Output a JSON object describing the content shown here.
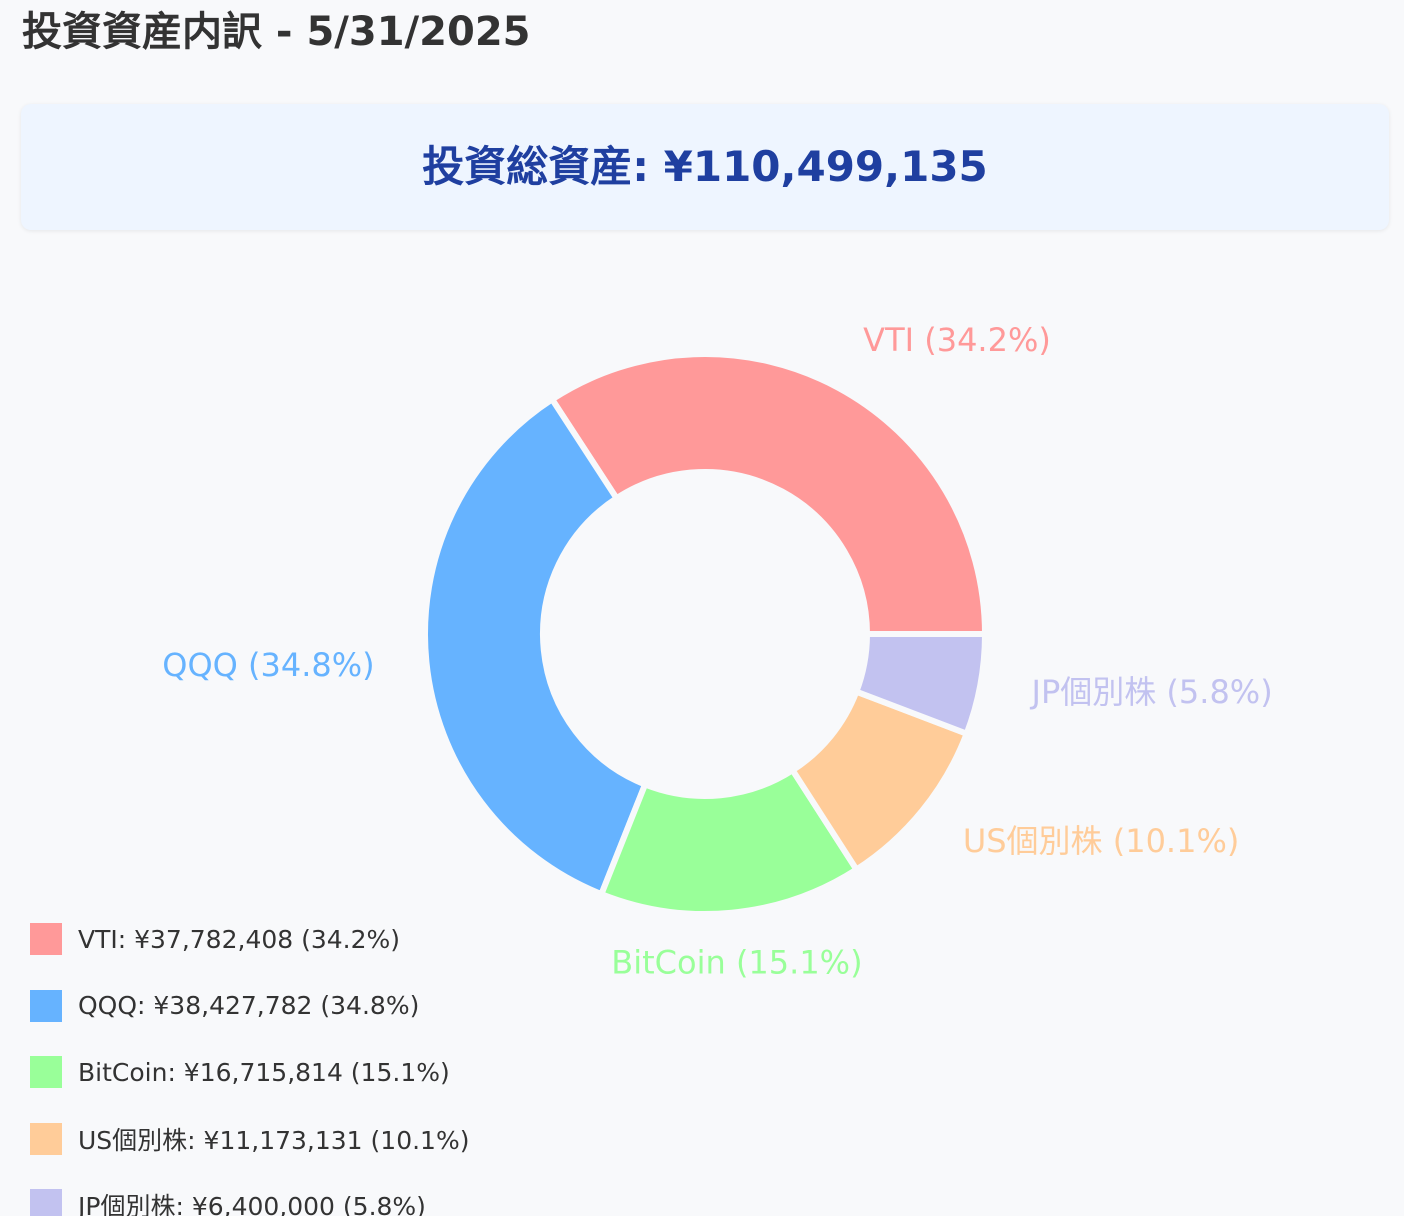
{
  "title": "投資資産内訳 - 5/31/2025",
  "total": {
    "text": "投資総資産: ¥110,499,135"
  },
  "chart_data": {
    "type": "pie",
    "donut": true,
    "categories": [
      "VTI",
      "QQQ",
      "BitCoin",
      "US個別株",
      "JP個別株"
    ],
    "values": [
      37782408,
      38427782,
      16715814,
      11173131,
      6400000
    ],
    "percentages": [
      34.2,
      34.8,
      15.1,
      10.1,
      5.8
    ],
    "colors": [
      "#ff9999",
      "#66b3ff",
      "#99ff99",
      "#ffcc99",
      "#c2c2f0"
    ],
    "slice_labels": [
      "VTI (34.2%)",
      "QQQ (34.8%)",
      "BitCoin (15.1%)",
      "US個別株 (10.1%)",
      "JP個別株 (5.8%)"
    ],
    "legend_position": "bottom-left"
  },
  "legend": [
    {
      "text": "VTI: ¥37,782,408 (34.2%)",
      "color": "#ff9999"
    },
    {
      "text": "QQQ: ¥38,427,782 (34.8%)",
      "color": "#66b3ff"
    },
    {
      "text": "BitCoin: ¥16,715,814 (15.1%)",
      "color": "#99ff99"
    },
    {
      "text": "US個別株: ¥11,173,131 (10.1%)",
      "color": "#ffcc99"
    },
    {
      "text": "JP個別株: ¥6,400,000 (5.8%)",
      "color": "#c2c2f0"
    }
  ]
}
